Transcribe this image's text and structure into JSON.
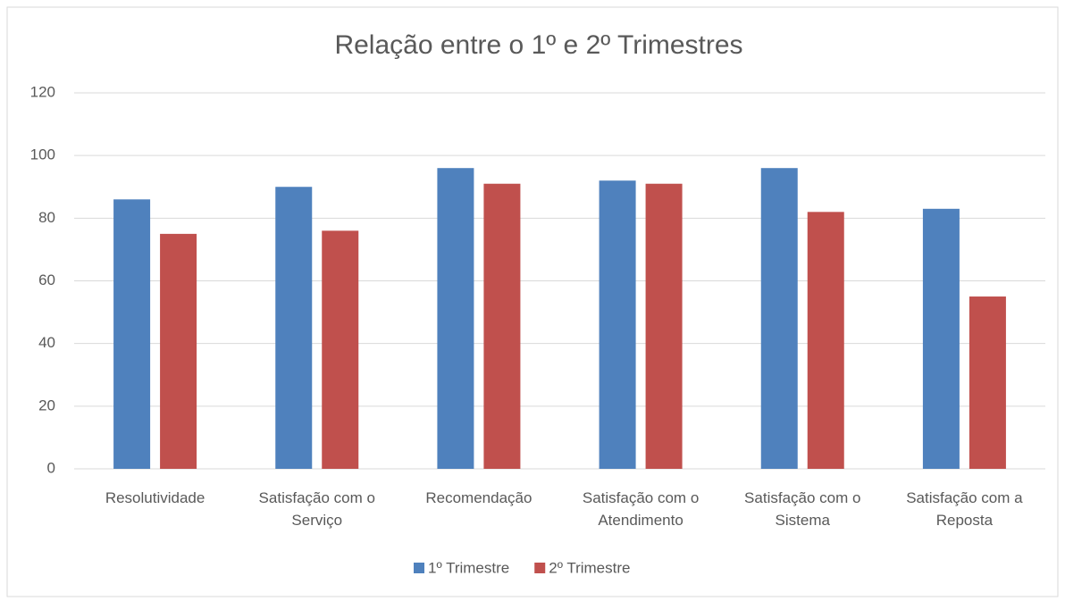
{
  "chart_data": {
    "type": "bar",
    "title": "Relação entre o 1º e 2º Trimestres",
    "categories": [
      "Resolutividade",
      "Satisfação com o Serviço",
      "Recomendação",
      "Satisfação com o Atendimento",
      "Satisfação com o Sistema",
      "Satisfação com a Reposta"
    ],
    "series": [
      {
        "name": "1º Trimestre",
        "color": "#4f81bd",
        "values": [
          86,
          90,
          96,
          92,
          96,
          83
        ]
      },
      {
        "name": "2º Trimestre",
        "color": "#c0504d",
        "values": [
          75,
          76,
          91,
          91,
          82,
          55
        ]
      }
    ],
    "ylim": [
      0,
      120
    ],
    "yticks": [
      0,
      20,
      40,
      60,
      80,
      100,
      120
    ],
    "grid": true,
    "legend": "bottom"
  }
}
